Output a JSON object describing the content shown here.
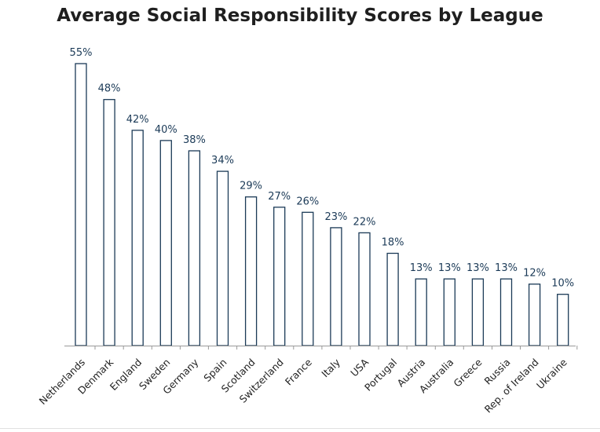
{
  "chart_data": {
    "type": "bar",
    "title": "Average Social Responsibility Scores by League",
    "xlabel": "",
    "ylabel": "",
    "categories": [
      "Netherlands",
      "Denmark",
      "England",
      "Sweden",
      "Germany",
      "Spain",
      "Scotland",
      "Switzerland",
      "France",
      "Italy",
      "USA",
      "Portugal",
      "Austria",
      "Australia",
      "Greece",
      "Russia",
      "Rep. of Ireland",
      "Ukraine"
    ],
    "values": [
      55,
      48,
      42,
      40,
      38,
      34,
      29,
      27,
      26,
      23,
      22,
      18,
      13,
      13,
      13,
      13,
      12,
      10
    ],
    "value_labels": [
      "55%",
      "48%",
      "42%",
      "40%",
      "38%",
      "34%",
      "29%",
      "27%",
      "26%",
      "23%",
      "22%",
      "18%",
      "13%",
      "13%",
      "13%",
      "13%",
      "12%",
      "10%"
    ],
    "ylim": [
      0,
      55
    ],
    "grid": false,
    "legend": "none",
    "colors": {
      "bar_fill": "#ffffff",
      "bar_stroke": "#1b3a57",
      "value_label": "#1b3a57",
      "axis": "#9a9a9a",
      "text": "#1f1f1f"
    }
  }
}
